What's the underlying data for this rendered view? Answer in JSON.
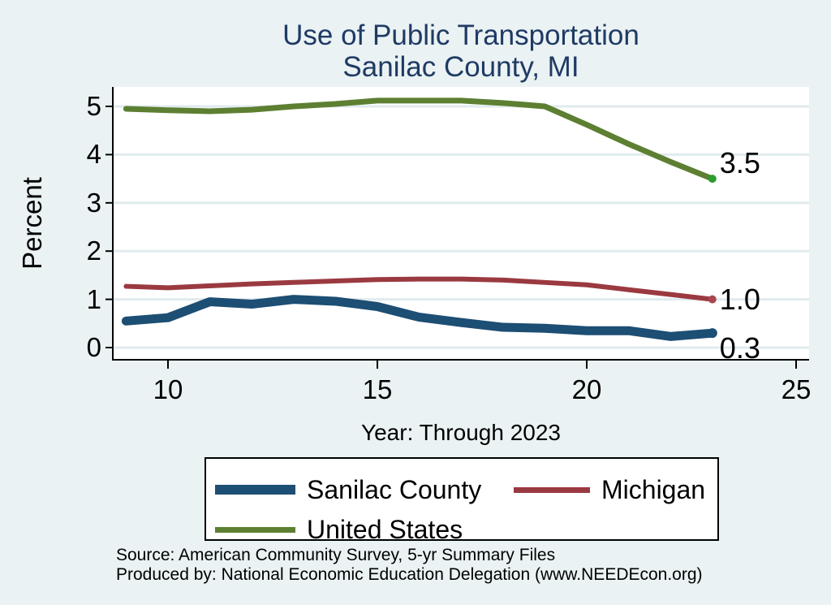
{
  "title": {
    "line1": "Use of Public Transportation",
    "line2": "Sanilac County, MI"
  },
  "axes": {
    "y_title": "Percent",
    "x_title": "Year: Through 2023"
  },
  "source": {
    "line1": "Source: American Community Survey, 5-yr Summary Files",
    "line2": "Produced by: National Economic Education Delegation (www.NEEDEcon.org)"
  },
  "colors": {
    "background": "#eaf2f3",
    "plot_bg": "#ffffff",
    "grid": "#e0ebee",
    "axis": "#000000",
    "title_text": "#1f3a64"
  },
  "chart_data": {
    "type": "line",
    "title": "Use of Public Transportation",
    "subtitle": "Sanilac County, MI",
    "xlabel": "Year: Through 2023",
    "ylabel": "Percent",
    "grid": "horizontal",
    "legend_position": "below",
    "xlim": [
      8.7,
      25.3
    ],
    "ylim": [
      -0.25,
      5.4
    ],
    "x_ticks": [
      10,
      15,
      20,
      25
    ],
    "y_ticks": [
      0,
      1,
      2,
      3,
      4,
      5
    ],
    "x": [
      9,
      10,
      11,
      12,
      13,
      14,
      15,
      16,
      17,
      18,
      19,
      20,
      21,
      22,
      23
    ],
    "series": [
      {
        "name": "Sanilac County",
        "color": "#1d4e74",
        "marker_color": "#1d4e74",
        "end_label": "0.3",
        "values": [
          0.55,
          0.62,
          0.95,
          0.9,
          1.0,
          0.96,
          0.85,
          0.63,
          0.52,
          0.42,
          0.4,
          0.35,
          0.35,
          0.23,
          0.3
        ]
      },
      {
        "name": "Michigan",
        "color": "#9a3a40",
        "marker_color": "#a8474e",
        "end_label": "1.0",
        "values": [
          1.27,
          1.24,
          1.28,
          1.32,
          1.35,
          1.38,
          1.41,
          1.42,
          1.42,
          1.4,
          1.35,
          1.3,
          1.2,
          1.1,
          1.0
        ]
      },
      {
        "name": "United States",
        "color": "#5d7f32",
        "marker_color": "#2e9b2e",
        "end_label": "3.5",
        "values": [
          4.95,
          4.92,
          4.9,
          4.93,
          5.0,
          5.05,
          5.12,
          5.12,
          5.12,
          5.07,
          5.0,
          4.62,
          4.22,
          3.85,
          3.5
        ]
      }
    ]
  }
}
